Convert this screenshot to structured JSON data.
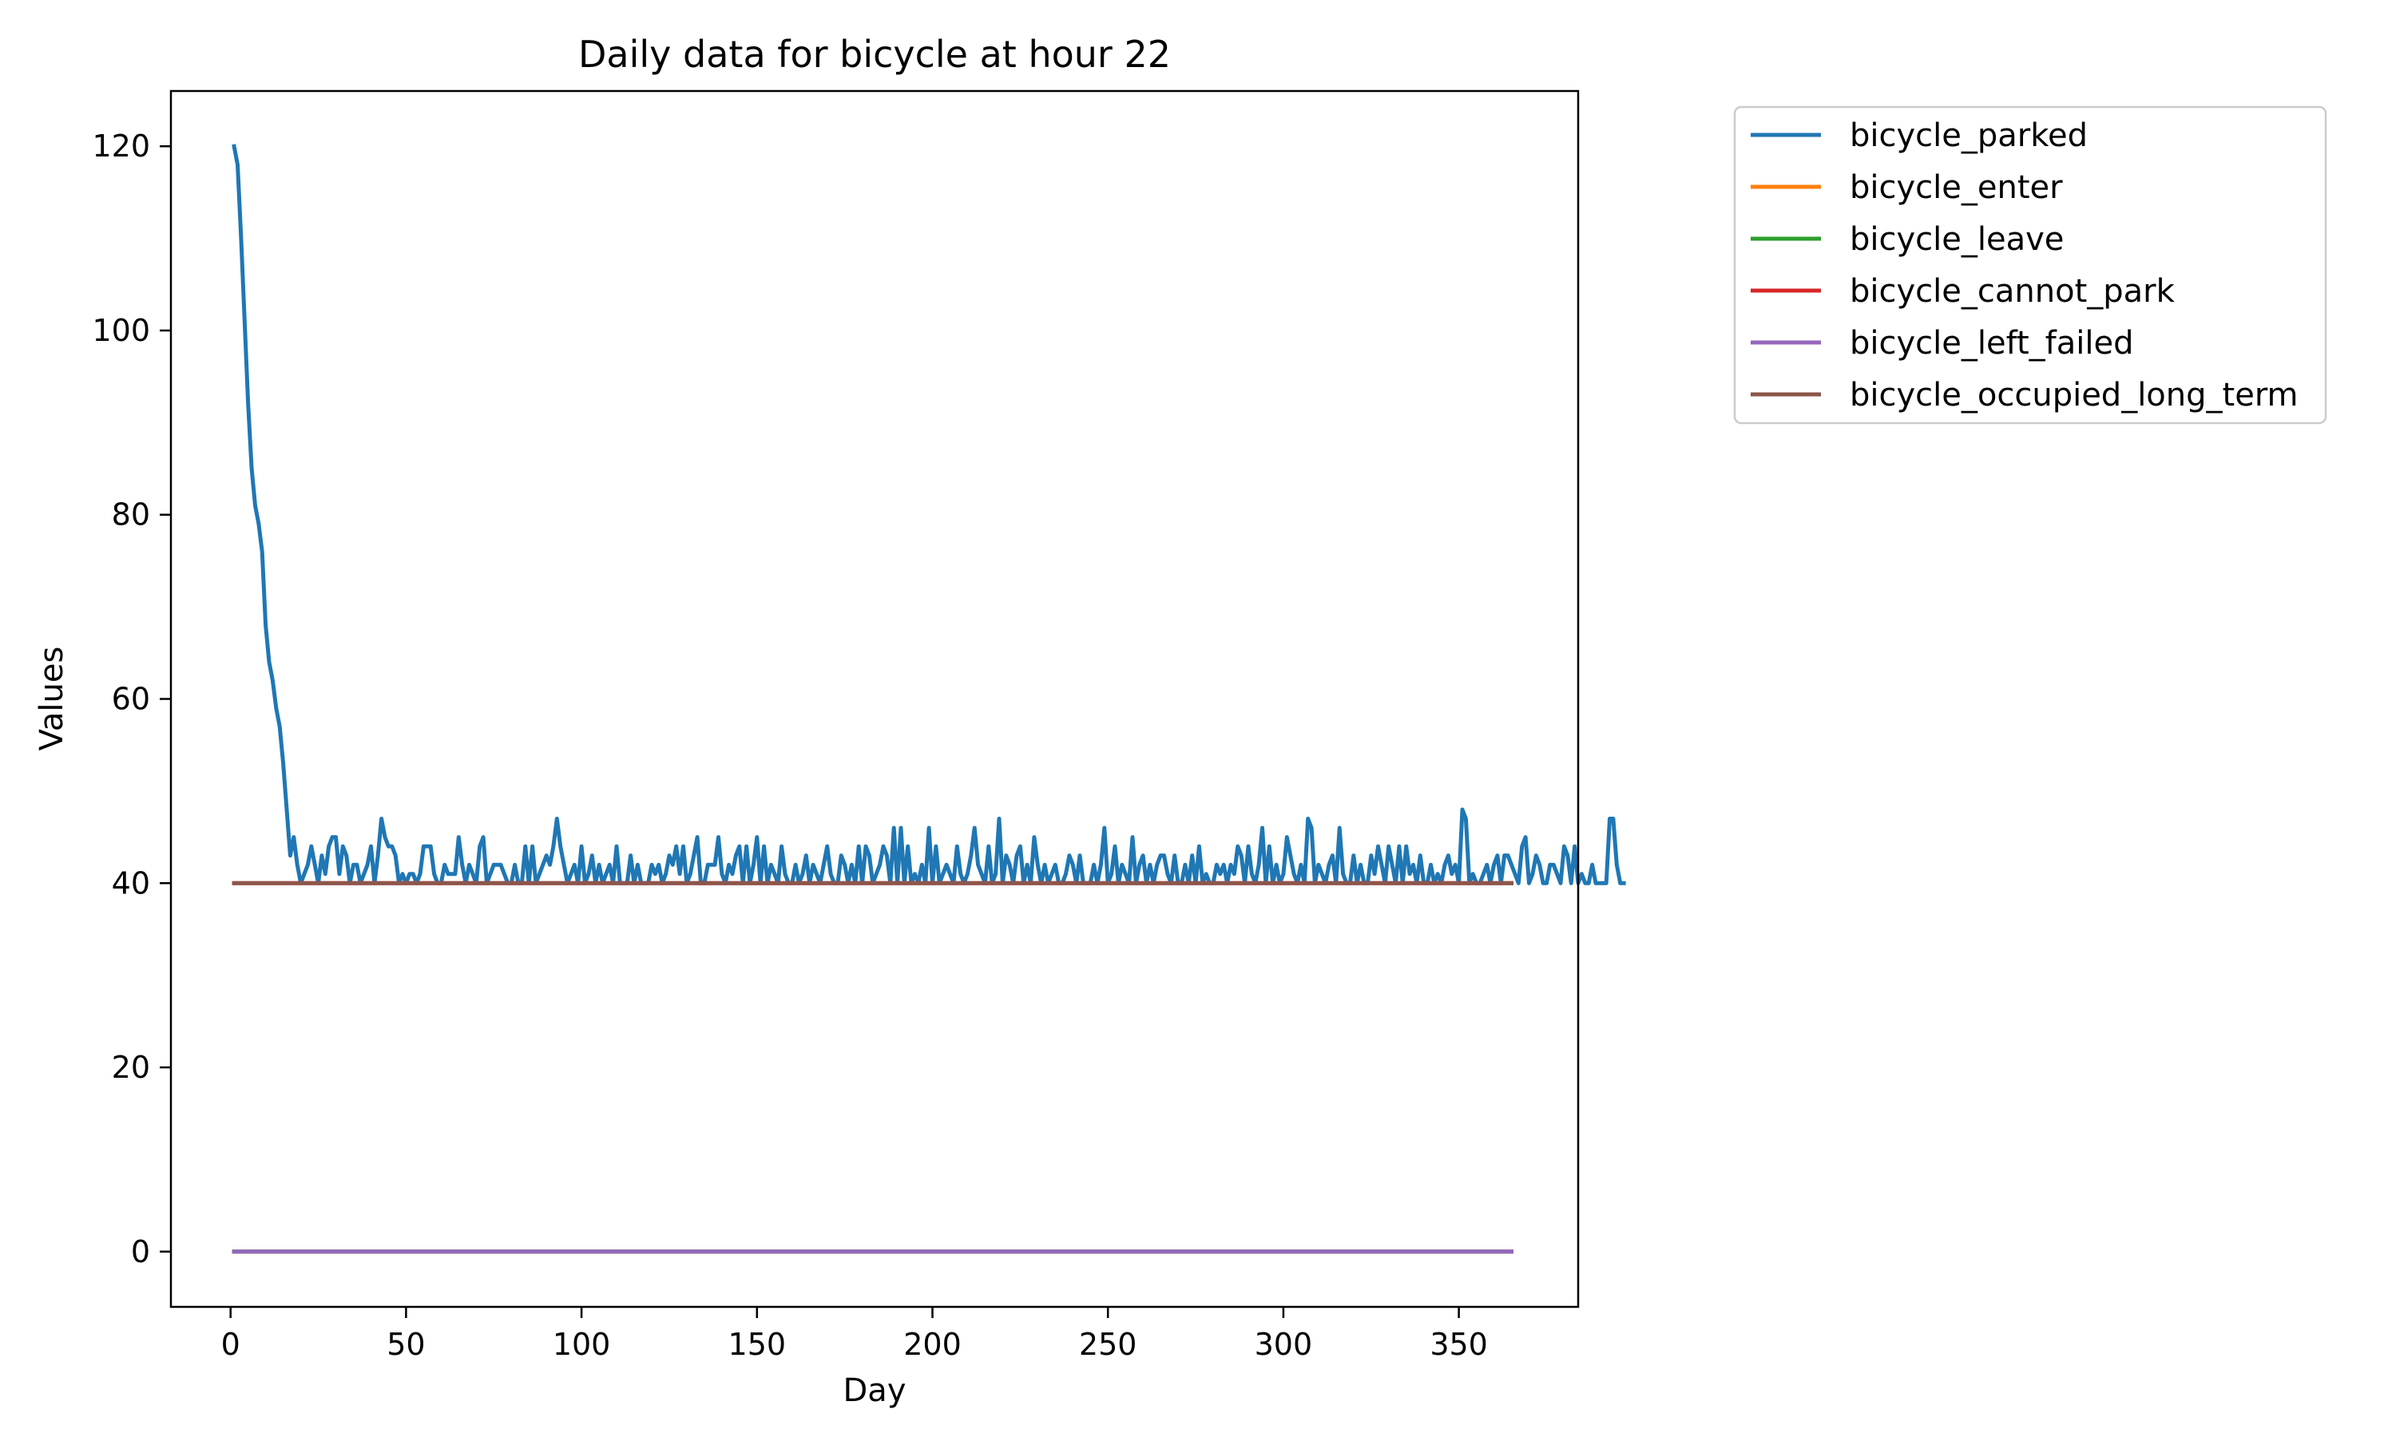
{
  "chart_data": {
    "type": "line",
    "title": "Daily data for bicycle at hour 22",
    "xlabel": "Day",
    "ylabel": "Values",
    "xlim": [
      -17,
      384
    ],
    "ylim": [
      -6,
      126
    ],
    "xticks": [
      0,
      50,
      100,
      150,
      200,
      250,
      300,
      350
    ],
    "yticks": [
      0,
      20,
      40,
      60,
      80,
      100,
      120
    ],
    "grid": false,
    "legend_position": "outside right, top",
    "x": {
      "start": 1,
      "end": 365
    },
    "series": [
      {
        "name": "bicycle_parked",
        "color": "#1f77b4",
        "values": [
          120,
          118,
          110,
          101,
          92,
          85,
          81,
          79,
          76,
          68,
          64,
          62,
          59,
          57,
          53,
          48,
          43,
          45,
          42,
          40,
          41,
          42,
          44,
          42,
          40,
          43,
          41,
          44,
          45,
          45,
          41,
          44,
          43,
          40,
          42,
          42,
          40,
          41,
          42,
          44,
          40,
          43,
          47,
          45,
          44,
          44,
          43,
          40,
          41,
          40,
          41,
          41,
          40,
          41,
          44,
          44,
          44,
          41,
          40,
          40,
          42,
          41,
          41,
          41,
          45,
          42,
          40,
          42,
          41,
          40,
          44,
          45,
          40,
          41,
          42,
          42,
          42,
          41,
          40,
          40,
          42,
          40,
          40,
          44,
          40,
          44,
          40,
          41,
          42,
          43,
          42,
          44,
          47,
          44,
          42,
          40,
          41,
          42,
          40,
          44,
          40,
          41,
          43,
          40,
          42,
          40,
          41,
          42,
          40,
          44,
          40,
          40,
          40,
          43,
          40,
          42,
          40,
          40,
          40,
          42,
          41,
          42,
          40,
          41,
          43,
          42,
          44,
          41,
          44,
          40,
          41,
          43,
          45,
          40,
          40,
          42,
          42,
          42,
          45,
          41,
          40,
          42,
          41,
          43,
          44,
          40,
          44,
          40,
          42,
          45,
          40,
          44,
          40,
          42,
          41,
          40,
          44,
          41,
          40,
          40,
          42,
          40,
          41,
          43,
          40,
          42,
          41,
          40,
          42,
          44,
          41,
          40,
          40,
          43,
          42,
          40,
          42,
          40,
          44,
          40,
          44,
          43,
          40,
          41,
          42,
          44,
          43,
          40,
          46,
          40,
          46,
          40,
          44,
          40,
          41,
          40,
          42,
          40,
          46,
          40,
          44,
          40,
          41,
          42,
          41,
          40,
          44,
          41,
          40,
          41,
          43,
          46,
          42,
          41,
          40,
          44,
          40,
          41,
          47,
          40,
          43,
          42,
          40,
          43,
          44,
          40,
          42,
          40,
          45,
          42,
          40,
          42,
          40,
          41,
          42,
          40,
          40,
          41,
          43,
          42,
          40,
          43,
          40,
          40,
          40,
          42,
          40,
          42,
          46,
          40,
          41,
          44,
          40,
          42,
          41,
          40,
          45,
          40,
          42,
          43,
          40,
          42,
          40,
          42,
          43,
          43,
          41,
          40,
          43,
          40,
          40,
          42,
          40,
          43,
          40,
          44,
          40,
          41,
          40,
          40,
          42,
          41,
          42,
          40,
          42,
          41,
          44,
          43,
          40,
          44,
          41,
          40,
          42,
          46,
          40,
          44,
          40,
          42,
          40,
          41,
          45,
          43,
          41,
          40,
          42,
          40,
          47,
          46,
          40,
          42,
          41,
          40,
          42,
          43,
          40,
          46,
          41,
          40,
          40,
          43,
          40,
          42,
          40,
          40,
          43,
          41,
          44,
          42,
          40,
          44,
          42,
          40,
          44,
          40,
          44,
          41,
          42,
          40,
          43,
          40,
          40,
          42,
          40,
          41,
          40,
          42,
          43,
          41,
          42,
          40,
          48,
          47,
          40,
          41,
          40,
          40,
          41,
          42,
          40,
          42,
          43,
          40,
          43,
          43,
          42,
          41,
          40,
          44,
          45,
          40,
          41,
          43,
          42,
          40,
          40,
          42,
          42,
          41,
          40,
          44,
          43,
          40,
          44,
          40,
          41,
          40,
          40,
          42,
          40,
          40,
          40,
          40,
          47,
          47,
          42,
          40,
          40
        ]
      },
      {
        "name": "bicycle_enter",
        "color": "#ff7f0e",
        "constant": 0
      },
      {
        "name": "bicycle_leave",
        "color": "#2ca02c",
        "constant": 0
      },
      {
        "name": "bicycle_cannot_park",
        "color": "#d62728",
        "constant": 40
      },
      {
        "name": "bicycle_left_failed",
        "color": "#9467bd",
        "constant": 0
      },
      {
        "name": "bicycle_occupied_long_term",
        "color": "#8c564b",
        "constant": 40
      }
    ]
  }
}
